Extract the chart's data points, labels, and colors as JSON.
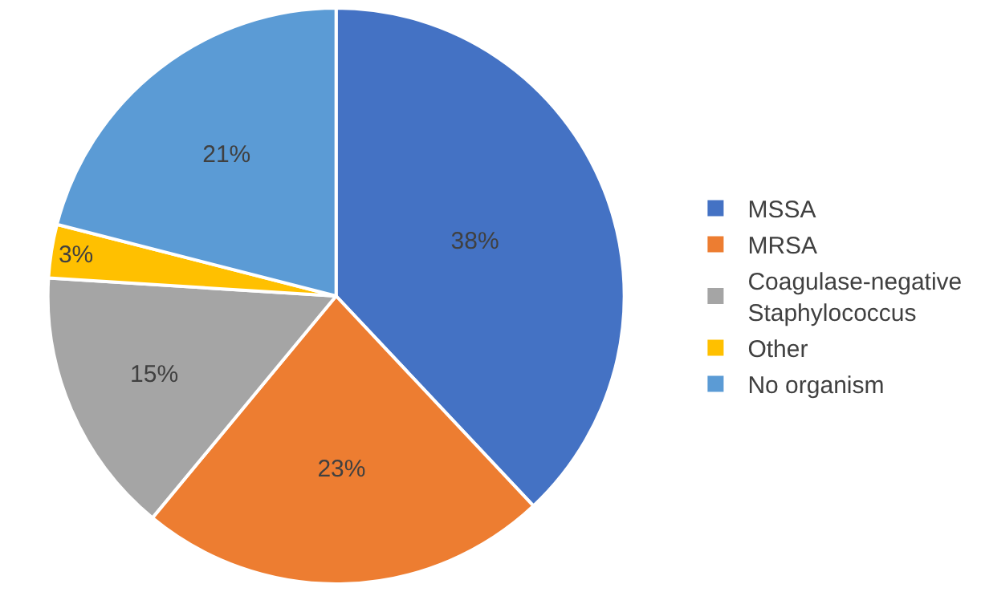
{
  "chart_data": {
    "type": "pie",
    "categories": [
      "MSSA",
      "MRSA",
      "Coagulase-negative Staphylococcus",
      "Other",
      "No organism"
    ],
    "values": [
      38,
      23,
      15,
      3,
      21
    ],
    "colors": [
      "#4472c4",
      "#ed7d31",
      "#a5a5a5",
      "#ffc000",
      "#5b9bd5"
    ],
    "value_labels": [
      "38%",
      "23%",
      "15%",
      "3%",
      "21%"
    ],
    "legend": "right"
  }
}
